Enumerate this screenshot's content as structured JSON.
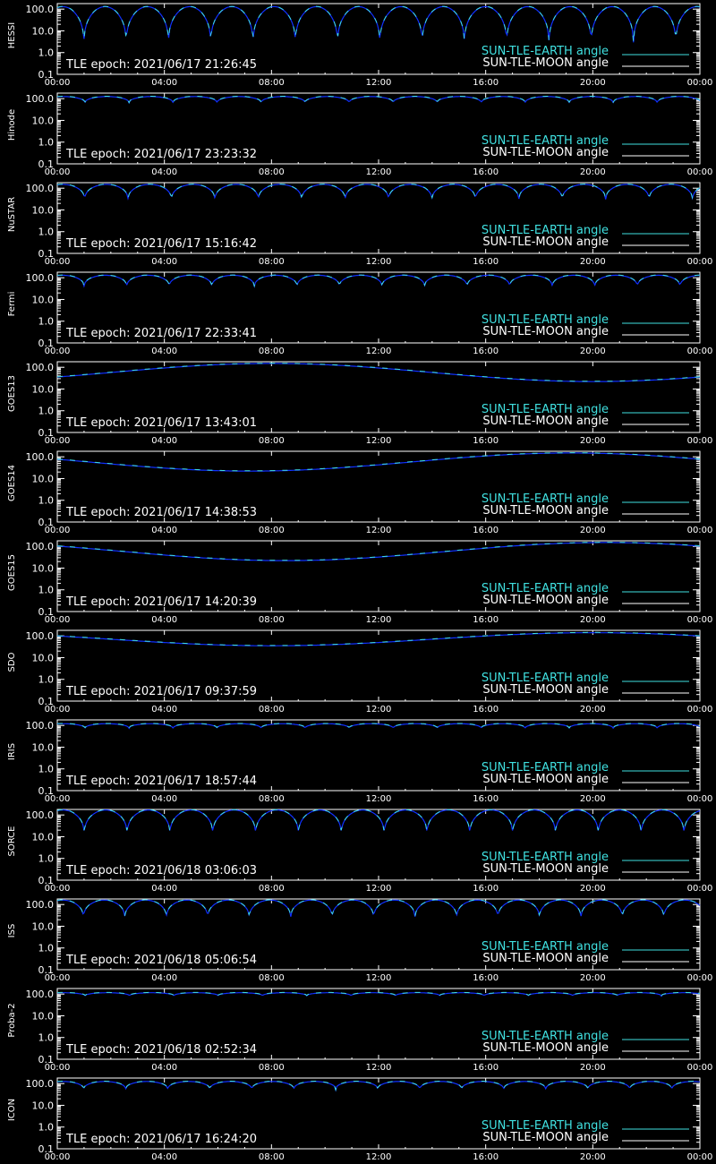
{
  "colors": {
    "background": "#000000",
    "axes": "#ffffff",
    "earth": "#40e0e0",
    "moon": "#1030ff",
    "text": "#ffffff"
  },
  "legend": {
    "earth_label": "SUN-TLE-EARTH angle",
    "moon_label": "SUN-TLE-MOON angle"
  },
  "chart_data": [
    {
      "type": "line",
      "name": "HESSI",
      "epoch": "TLE epoch: 2021/06/17 21:26:45",
      "pattern": "orbit",
      "orbits": 15.2,
      "min": 1.8,
      "max": 130
    },
    {
      "type": "line",
      "name": "Hinode",
      "epoch": "TLE epoch: 2021/06/17 23:23:32",
      "pattern": "orbit",
      "orbits": 14.6,
      "min": 60,
      "max": 125
    },
    {
      "type": "line",
      "name": "NuSTAR",
      "epoch": "TLE epoch: 2021/06/17 15:16:42",
      "pattern": "orbit",
      "orbits": 14.8,
      "min": 25,
      "max": 150
    },
    {
      "type": "line",
      "name": "Fermi",
      "epoch": "TLE epoch: 2021/06/17 22:33:41",
      "pattern": "orbit",
      "orbits": 15.1,
      "min": 35,
      "max": 130
    },
    {
      "type": "line",
      "name": "GOES13",
      "epoch": "TLE epoch: 2021/06/17 13:43:01",
      "pattern": "geo",
      "min": 22,
      "max": 150,
      "min_hour": 20.0
    },
    {
      "type": "line",
      "name": "GOES14",
      "epoch": "TLE epoch: 2021/06/17 14:38:53",
      "pattern": "geo",
      "min": 22,
      "max": 150,
      "min_hour": 7.2
    },
    {
      "type": "line",
      "name": "GOES15",
      "epoch": "TLE epoch: 2021/06/17 14:20:39",
      "pattern": "geo",
      "min": 22,
      "max": 150,
      "min_hour": 8.5
    },
    {
      "type": "line",
      "name": "SDO",
      "epoch": "TLE epoch: 2021/06/17 09:37:59",
      "pattern": "geo",
      "min": 35,
      "max": 140,
      "min_hour": 8.0
    },
    {
      "type": "line",
      "name": "IRIS",
      "epoch": "TLE epoch: 2021/06/17 18:57:44",
      "pattern": "orbit",
      "orbits": 14.6,
      "min": 70,
      "max": 120
    },
    {
      "type": "line",
      "name": "SORCE",
      "epoch": "TLE epoch: 2021/06/18 03:06:03",
      "pattern": "orbit",
      "orbits": 15.0,
      "min": 10,
      "max": 170
    },
    {
      "type": "line",
      "name": "ISS",
      "epoch": "TLE epoch: 2021/06/18 05:06:54",
      "pattern": "orbit",
      "orbits": 15.5,
      "min": 20,
      "max": 160
    },
    {
      "type": "line",
      "name": "Proba-2",
      "epoch": "TLE epoch: 2021/06/18 02:52:34",
      "pattern": "orbit",
      "orbits": 14.5,
      "min": 80,
      "max": 115
    },
    {
      "type": "line",
      "name": "ICON",
      "epoch": "TLE epoch: 2021/06/17 16:24:20",
      "pattern": "orbit",
      "orbits": 15.3,
      "min": 50,
      "max": 125
    }
  ],
  "axes": {
    "x_ticks": [
      "00:00",
      "04:00",
      "08:00",
      "12:00",
      "16:00",
      "20:00",
      "00:00"
    ],
    "x_range_hours": [
      0,
      24
    ],
    "y_ticks": [
      "0.1",
      "1.0",
      "10.0",
      "100.0"
    ],
    "y_range": [
      0.1,
      180
    ],
    "y_scale": "log"
  }
}
